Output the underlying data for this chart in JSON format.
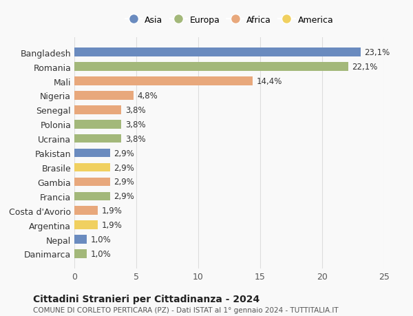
{
  "categories": [
    "Danimarca",
    "Nepal",
    "Argentina",
    "Costa d'Avorio",
    "Francia",
    "Gambia",
    "Brasile",
    "Pakistan",
    "Ucraina",
    "Polonia",
    "Senegal",
    "Nigeria",
    "Mali",
    "Romania",
    "Bangladesh"
  ],
  "values": [
    1.0,
    1.0,
    1.9,
    1.9,
    2.9,
    2.9,
    2.9,
    2.9,
    3.8,
    3.8,
    3.8,
    4.8,
    14.4,
    22.1,
    23.1
  ],
  "labels": [
    "1,0%",
    "1,0%",
    "1,9%",
    "1,9%",
    "2,9%",
    "2,9%",
    "2,9%",
    "2,9%",
    "3,8%",
    "3,8%",
    "3,8%",
    "4,8%",
    "14,4%",
    "22,1%",
    "23,1%"
  ],
  "continents": [
    "Europa",
    "Asia",
    "America",
    "Africa",
    "Europa",
    "Africa",
    "America",
    "Asia",
    "Europa",
    "Europa",
    "Africa",
    "Africa",
    "Africa",
    "Europa",
    "Asia"
  ],
  "continent_colors": {
    "Asia": "#6a8bbf",
    "Europa": "#a3b87a",
    "Africa": "#e8a87c",
    "America": "#f0d060"
  },
  "legend_order": [
    "Asia",
    "Europa",
    "Africa",
    "America"
  ],
  "title": "Cittadini Stranieri per Cittadinanza - 2024",
  "subtitle": "COMUNE DI CORLETO PERTICARA (PZ) - Dati ISTAT al 1° gennaio 2024 - TUTTITALIA.IT",
  "xlim": [
    0,
    25
  ],
  "xticks": [
    0,
    5,
    10,
    15,
    20,
    25
  ],
  "background_color": "#f9f9f9",
  "grid_color": "#dddddd"
}
